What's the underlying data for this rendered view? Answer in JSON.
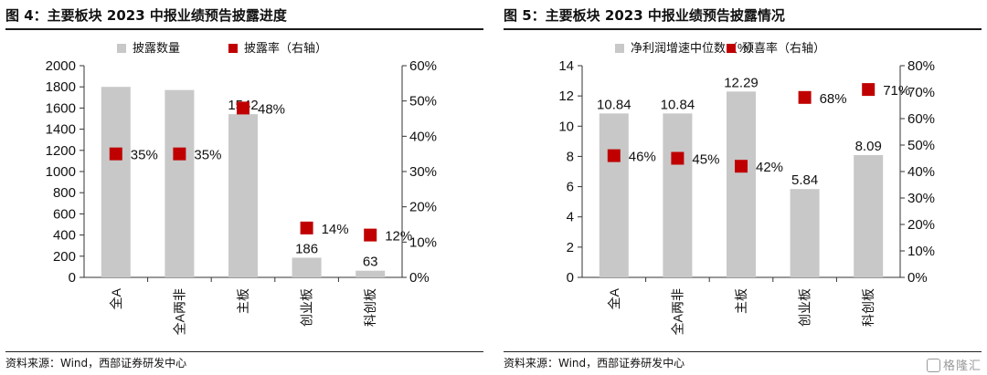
{
  "figures": [
    {
      "title": "图 4：主要板块 2023 中报业绩预告披露进度",
      "source": "资料来源：Wind，西部证券研发中心"
    },
    {
      "title": "图 5：主要板块 2023 中报业绩预告披露情况",
      "source": "资料来源：Wind，西部证券研发中心"
    }
  ],
  "watermark": "格隆汇",
  "chart_data": [
    {
      "type": "bar",
      "categories": [
        "全A",
        "全A两非",
        "主板",
        "创业板",
        "科创板"
      ],
      "series": [
        {
          "name": "披露数量",
          "kind": "bar",
          "axis": "left",
          "values": [
            1800,
            1770,
            1542,
            186,
            63
          ],
          "labels": [
            "",
            "",
            "1542",
            "186",
            "63"
          ],
          "color": "#c8c8c8"
        },
        {
          "name": "披露率（右轴）",
          "kind": "marker",
          "axis": "right",
          "values": [
            35,
            35,
            48,
            14,
            12
          ],
          "labels": [
            "35%",
            "35%",
            "48%",
            "14%",
            "12%"
          ],
          "color": "#c00000"
        }
      ],
      "y_left": {
        "min": 0,
        "max": 2000,
        "ticks": [
          "0",
          "200",
          "400",
          "600",
          "800",
          "1000",
          "1200",
          "1400",
          "1600",
          "1800",
          "2000"
        ]
      },
      "y_right": {
        "min": 0,
        "max": 60,
        "ticks": [
          "0%",
          "10%",
          "20%",
          "30%",
          "40%",
          "50%",
          "60%"
        ]
      },
      "legend_position": "top"
    },
    {
      "type": "bar",
      "categories": [
        "全A",
        "全A两非",
        "主板",
        "创业板",
        "科创板"
      ],
      "series": [
        {
          "name": "净利润增速中位数（%）",
          "kind": "bar",
          "axis": "left",
          "values": [
            10.84,
            10.84,
            12.29,
            5.84,
            8.09
          ],
          "labels": [
            "10.84",
            "10.84",
            "12.29",
            "5.84",
            "8.09"
          ],
          "color": "#c8c8c8"
        },
        {
          "name": "预喜率（右轴）",
          "kind": "marker",
          "axis": "right",
          "values": [
            46,
            45,
            42,
            68,
            71
          ],
          "labels": [
            "46%",
            "45%",
            "42%",
            "68%",
            "71%"
          ],
          "color": "#c00000"
        }
      ],
      "y_left": {
        "min": 0,
        "max": 14,
        "ticks": [
          "0",
          "2",
          "4",
          "6",
          "8",
          "10",
          "12",
          "14"
        ]
      },
      "y_right": {
        "min": 0,
        "max": 80,
        "ticks": [
          "0%",
          "10%",
          "20%",
          "30%",
          "40%",
          "50%",
          "60%",
          "70%",
          "80%"
        ]
      },
      "legend_position": "top"
    }
  ]
}
